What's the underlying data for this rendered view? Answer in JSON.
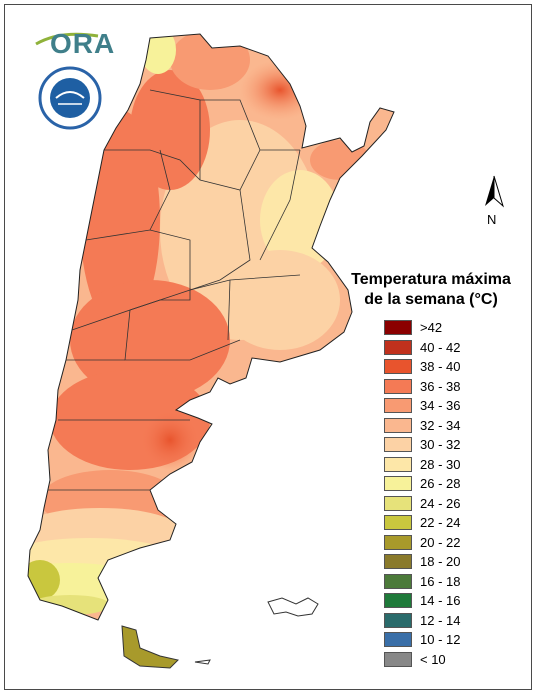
{
  "logo": {
    "text": "ORA"
  },
  "north": {
    "label": "N",
    "icon": "north-arrow-icon"
  },
  "seal": {
    "icon": "smn-seal-icon"
  },
  "legend": {
    "title_line1": "Temperatura máxima",
    "title_line2": "de la semana (°C)",
    "items": [
      {
        "label": ">42",
        "color": "#8b0000"
      },
      {
        "label": "40 - 42",
        "color": "#c0311d"
      },
      {
        "label": "38 - 40",
        "color": "#e8542d"
      },
      {
        "label": "36 - 38",
        "color": "#f47a55"
      },
      {
        "label": "34 - 36",
        "color": "#f89a72"
      },
      {
        "label": "32 - 34",
        "color": "#fab78f"
      },
      {
        "label": "30 - 32",
        "color": "#fcd2a5"
      },
      {
        "label": "28 - 30",
        "color": "#fde7a8"
      },
      {
        "label": "26 - 28",
        "color": "#f7f29a"
      },
      {
        "label": "24 - 26",
        "color": "#e6e27a"
      },
      {
        "label": "22 - 24",
        "color": "#c9c73e"
      },
      {
        "label": "20 - 22",
        "color": "#a89a2b"
      },
      {
        "label": "18 - 20",
        "color": "#8a7a2b"
      },
      {
        "label": "16 - 18",
        "color": "#4c7a3a"
      },
      {
        "label": "14 - 16",
        "color": "#1f7a3a"
      },
      {
        "label": "12 - 14",
        "color": "#2a6b6b"
      },
      {
        "label": "10 - 12",
        "color": "#3a6fa8"
      },
      {
        "label": "< 10",
        "color": "#888888"
      }
    ]
  }
}
